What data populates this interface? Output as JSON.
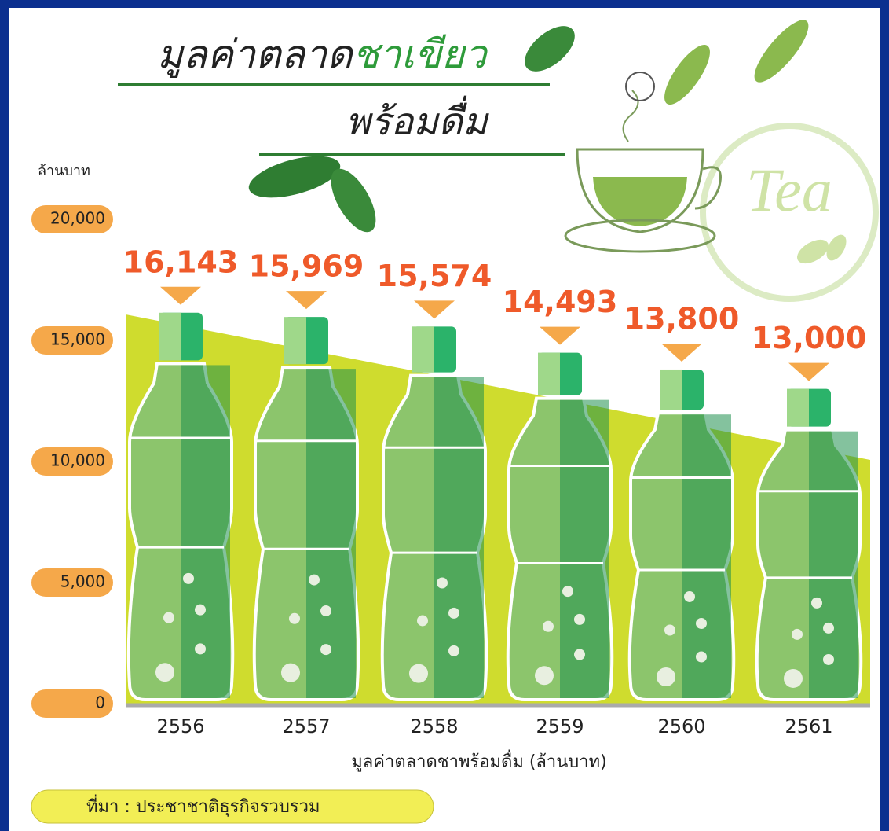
{
  "chart_data": {
    "type": "bar",
    "title": "มูลค่าตลาด",
    "title_highlight": "ชาเขียว",
    "subtitle": "พร้อมดื่ม",
    "logo_text": "Tea",
    "y_label": "ล้านบาท",
    "x_label": "มูลค่าตลาดชาพร้อมดื่ม (ล้านบาท)",
    "source": "ที่มา : ประชาชาติธุรกิจรวบรวม",
    "categories": [
      "2556",
      "2557",
      "2558",
      "2559",
      "2560",
      "2561"
    ],
    "values": [
      16143,
      15969,
      15574,
      14493,
      13800,
      13000
    ],
    "value_labels": [
      "16,143",
      "15,969",
      "15,574",
      "14,493",
      "13,800",
      "13,000"
    ],
    "color": "#8cc56c",
    "ylim": [
      0,
      20000
    ],
    "yticks": [
      0,
      {
        "value": 5000,
        "label": "5,000"
      },
      {
        "value": 10000,
        "label": "10,000"
      },
      {
        "value": 15000,
        "label": "15,000"
      },
      {
        "value": 20000,
        "label": "20,000"
      }
    ]
  }
}
